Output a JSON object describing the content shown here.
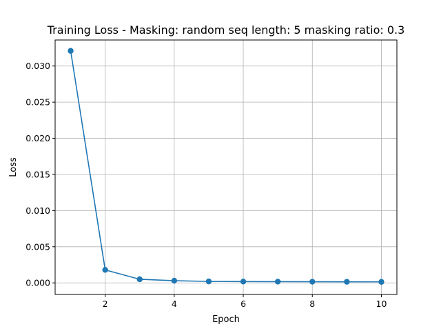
{
  "chart_data": {
    "type": "line",
    "title": "Training Loss - Masking: random seq length: 5 masking ratio: 0.3",
    "xlabel": "Epoch",
    "ylabel": "Loss",
    "xlim": [
      0.55,
      10.45
    ],
    "ylim": [
      -0.0016,
      0.0336
    ],
    "grid": true,
    "x_ticks": [
      2,
      4,
      6,
      8,
      10
    ],
    "x_tick_labels": [
      "2",
      "4",
      "6",
      "8",
      "10"
    ],
    "y_ticks": [
      0.0,
      0.005,
      0.01,
      0.015,
      0.02,
      0.025,
      0.03
    ],
    "y_tick_labels": [
      "0.000",
      "0.005",
      "0.010",
      "0.015",
      "0.020",
      "0.025",
      "0.030"
    ],
    "series": [
      {
        "color": "#1f77b4",
        "marker": "circle",
        "x": [
          1,
          2,
          3,
          4,
          5,
          6,
          7,
          8,
          9,
          10
        ],
        "y": [
          0.0321,
          0.0018,
          0.0005,
          0.0003,
          0.0002,
          0.00018,
          0.00017,
          0.00016,
          0.00015,
          0.00014
        ]
      }
    ]
  }
}
